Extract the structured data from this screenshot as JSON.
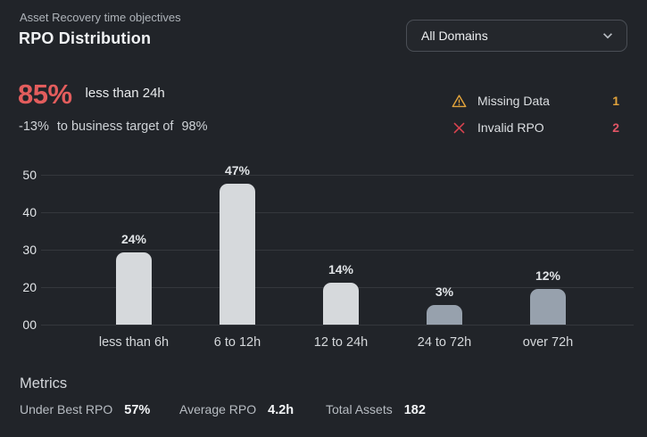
{
  "header": {
    "subtitle": "Asset Recovery time objectives",
    "title": "RPO Distribution"
  },
  "domain_filter": {
    "value": "All Domains"
  },
  "summary": {
    "headline_value": "85%",
    "headline_label": "less than 24h",
    "delta": "-13%",
    "delta_text": "to business target of",
    "target_value": "98%"
  },
  "alerts": [
    {
      "icon": "warning-triangle-icon",
      "label": "Missing Data",
      "count": "1",
      "color": "#e2a33b"
    },
    {
      "icon": "x-mark-icon",
      "label": "Invalid RPO",
      "count": "2",
      "color": "#e25565"
    }
  ],
  "chart_data": {
    "type": "bar",
    "title": "RPO Distribution",
    "categories": [
      "less than 6h",
      "6 to 12h",
      "12 to 24h",
      "24 to 72h",
      "over 72h"
    ],
    "values": [
      24,
      47,
      14,
      3,
      12
    ],
    "value_labels": [
      "24%",
      "47%",
      "14%",
      "3%",
      "12%"
    ],
    "y_ticks": [
      "50",
      "40",
      "30",
      "20",
      "00"
    ],
    "ylim": [
      0,
      50
    ],
    "grid": true,
    "legend": "none",
    "bar_color_keys": [
      "light",
      "light",
      "light",
      "muted",
      "muted"
    ],
    "colors": {
      "light": "#d6d9dc",
      "muted": "#97a1ad"
    }
  },
  "metrics": {
    "heading": "Metrics",
    "items": [
      {
        "label": "Under Best RPO",
        "value": "57%"
      },
      {
        "label": "Average RPO",
        "value": "4.2h"
      },
      {
        "label": "Total Assets",
        "value": "182"
      }
    ]
  },
  "colors": {
    "background": "#212429",
    "accent_red": "#e35d5d",
    "amber": "#e2a33b",
    "invalid_red": "#e25565",
    "gridline": "#34373c"
  }
}
